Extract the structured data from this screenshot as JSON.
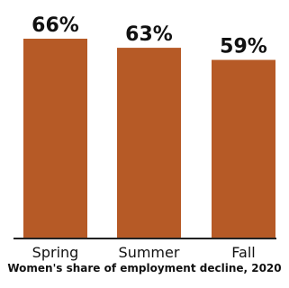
{
  "chart_data": {
    "type": "bar",
    "categories": [
      "Spring",
      "Summer",
      "Fall"
    ],
    "values": [
      66,
      63,
      59
    ],
    "data_labels": [
      "66%",
      "63%",
      "59%"
    ],
    "xlabel": "Women's share of employment decline, 2020",
    "ylabel": "",
    "ylim": [
      0,
      66
    ],
    "grid": false,
    "legend": "none",
    "bar_color": "#b65a26",
    "axis_color": "#222222"
  }
}
